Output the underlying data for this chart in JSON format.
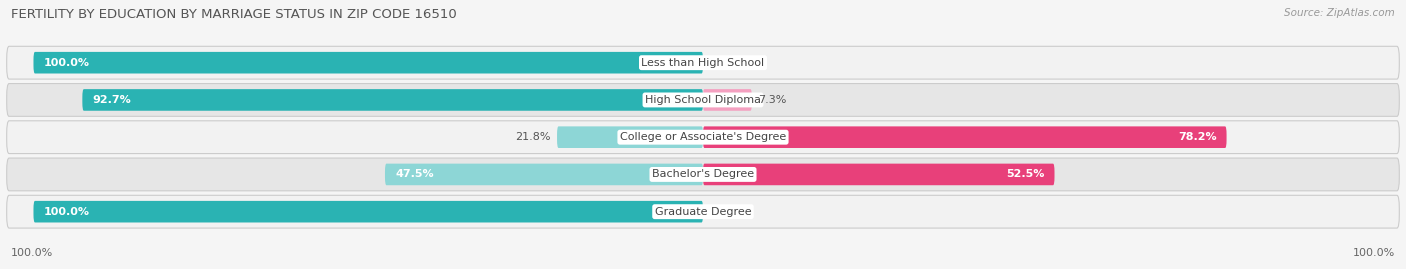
{
  "title": "FERTILITY BY EDUCATION BY MARRIAGE STATUS IN ZIP CODE 16510",
  "source": "Source: ZipAtlas.com",
  "categories": [
    "Less than High School",
    "High School Diploma",
    "College or Associate's Degree",
    "Bachelor's Degree",
    "Graduate Degree"
  ],
  "married": [
    100.0,
    92.7,
    21.8,
    47.5,
    100.0
  ],
  "unmarried": [
    0.0,
    7.3,
    78.2,
    52.5,
    0.0
  ],
  "married_color_full": "#2ab3b3",
  "married_color_light": "#8dd6d6",
  "unmarried_color_full": "#e8407a",
  "unmarried_color_light": "#f4a0c0",
  "row_bg_light": "#f2f2f2",
  "row_bg_dark": "#e6e6e6",
  "title_fontsize": 9.5,
  "label_fontsize": 8.0,
  "value_fontsize": 8.0,
  "source_fontsize": 7.5,
  "legend_fontsize": 8.5,
  "axis_label_left": "100.0%",
  "axis_label_right": "100.0%",
  "full_threshold": 50.0
}
